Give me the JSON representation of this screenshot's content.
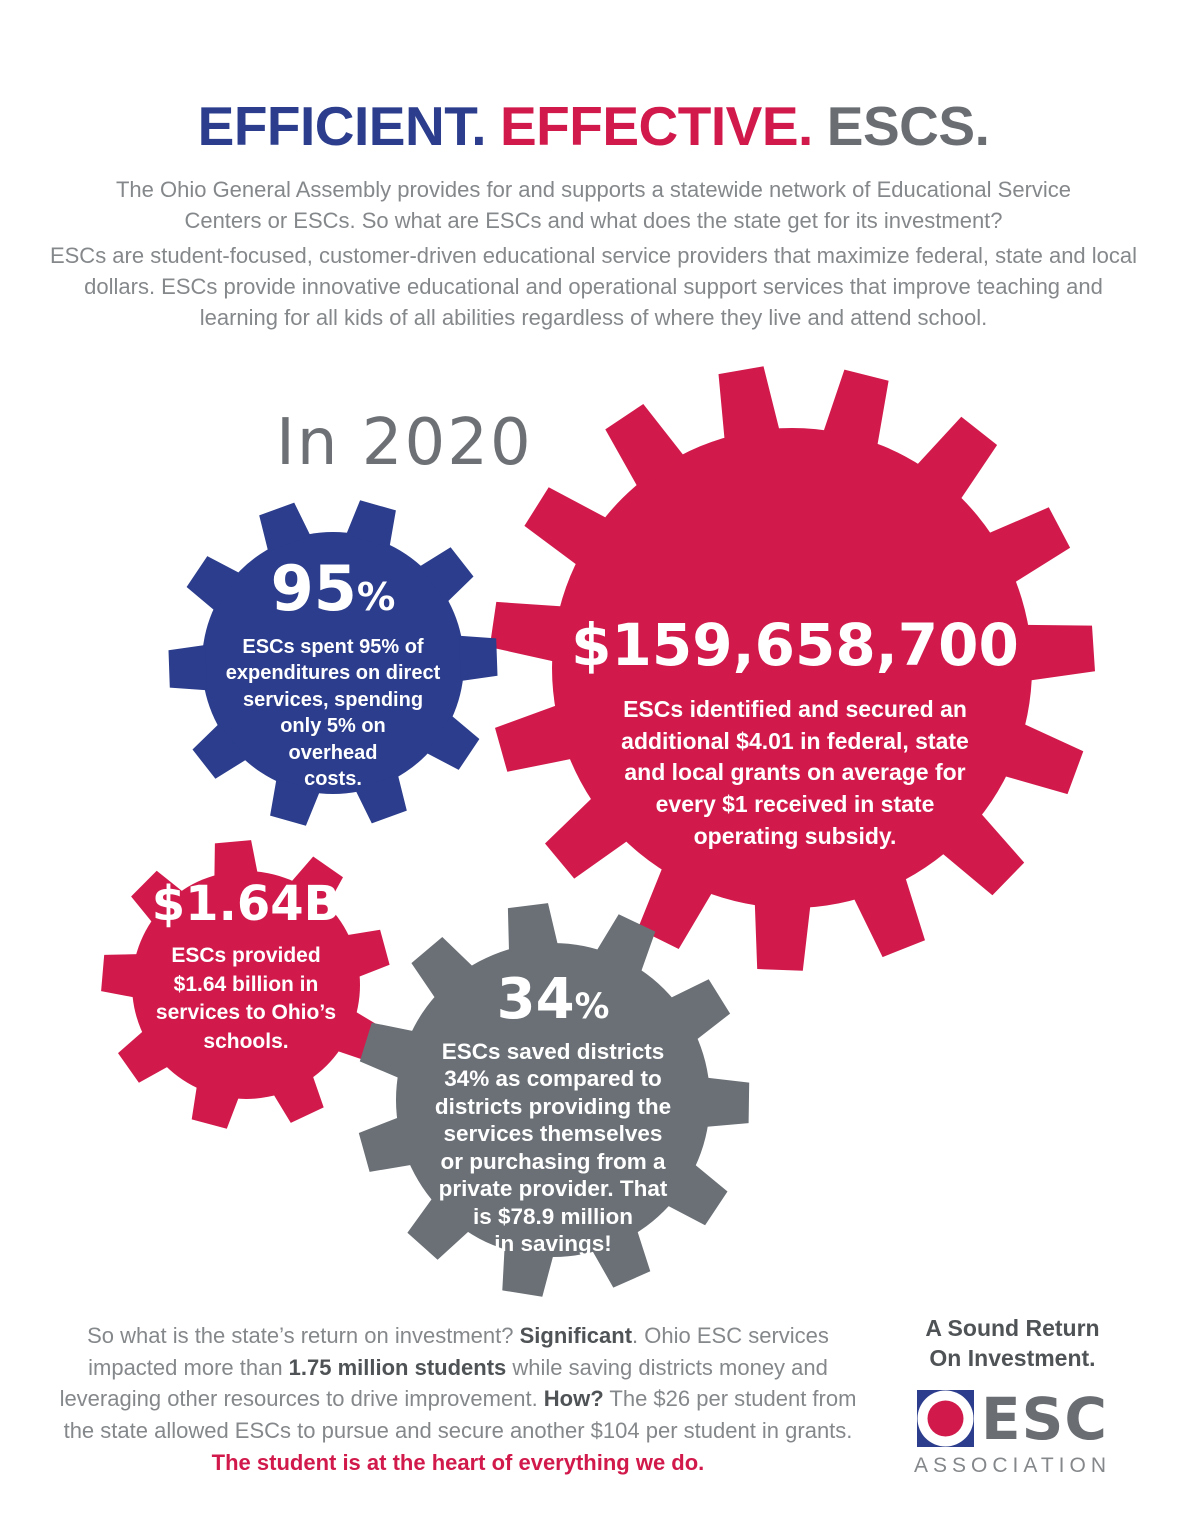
{
  "title": {
    "part1": "EFFICIENT.",
    "part2": "EFFECTIVE.",
    "part3": "ESCS.",
    "colors": {
      "part1": "#2b3d8c",
      "part2": "#d11a4b",
      "part3": "#6a6e73"
    }
  },
  "intro": {
    "p1": "The Ohio General Assembly provides for and supports a statewide network of Educational Service Centers or ESCs. So what are ESCs and what does the state get for its investment?",
    "p2": "ESCs are student-focused, customer-driven educational service providers that maximize federal, state and local dollars. ESCs provide innovative educational and operational support services that improve teaching and learning for all kids of all abilities regardless of where they live and attend school."
  },
  "year_heading": "In 2020",
  "gears": {
    "blue": {
      "color": "#2b3d8c",
      "value": "95",
      "value_suffix": "%",
      "lines": [
        "ESCs spent 95% of",
        "expenditures on direct",
        "services, spending",
        "only 5% on",
        "overhead",
        "costs."
      ]
    },
    "big_red": {
      "color": "#d11a4b",
      "value": "$159,658,700",
      "lines": [
        "ESCs identified and secured an",
        "additional $4.01 in federal, state",
        "and local grants on average for",
        "every $1 received in state",
        "operating subsidy."
      ]
    },
    "small_red": {
      "color": "#d11a4b",
      "value": "$1.64B",
      "lines": [
        "ESCs provided",
        "$1.64 billion in",
        "services to Ohio’s",
        "schools."
      ]
    },
    "gray": {
      "color": "#6a7076",
      "value": "34",
      "value_suffix": "%",
      "lines": [
        "ESCs saved districts",
        "34% as compared to",
        "districts providing the",
        "services themselves",
        "or purchasing from a",
        "private provider. That",
        "is $78.9 million",
        "in savings!"
      ]
    }
  },
  "footer": {
    "segments": [
      {
        "text": "So what is the state’s return on investment? ",
        "style": "normal"
      },
      {
        "text": "Significant",
        "style": "bold"
      },
      {
        "text": ". Ohio ESC services impacted more than ",
        "style": "normal"
      },
      {
        "text": "1.75 million students",
        "style": "bold"
      },
      {
        "text": " while saving districts money and leveraging other resources to drive improvement. ",
        "style": "normal"
      },
      {
        "text": "How?",
        "style": "bold"
      },
      {
        "text": " The $26 per student from the state allowed ESCs to pursue and secure another $104 per student in grants. ",
        "style": "normal"
      },
      {
        "text": "The student is at the heart of everything we do.",
        "style": "bold-red"
      }
    ]
  },
  "brand": {
    "tagline_line1": "A Sound Return",
    "tagline_line2": "On Investment.",
    "name": "ESC",
    "subname": "ASSOCIATION",
    "mark_colors": {
      "square": "#2b3d8c",
      "ring": "#ffffff",
      "dot": "#d11a4b"
    }
  }
}
